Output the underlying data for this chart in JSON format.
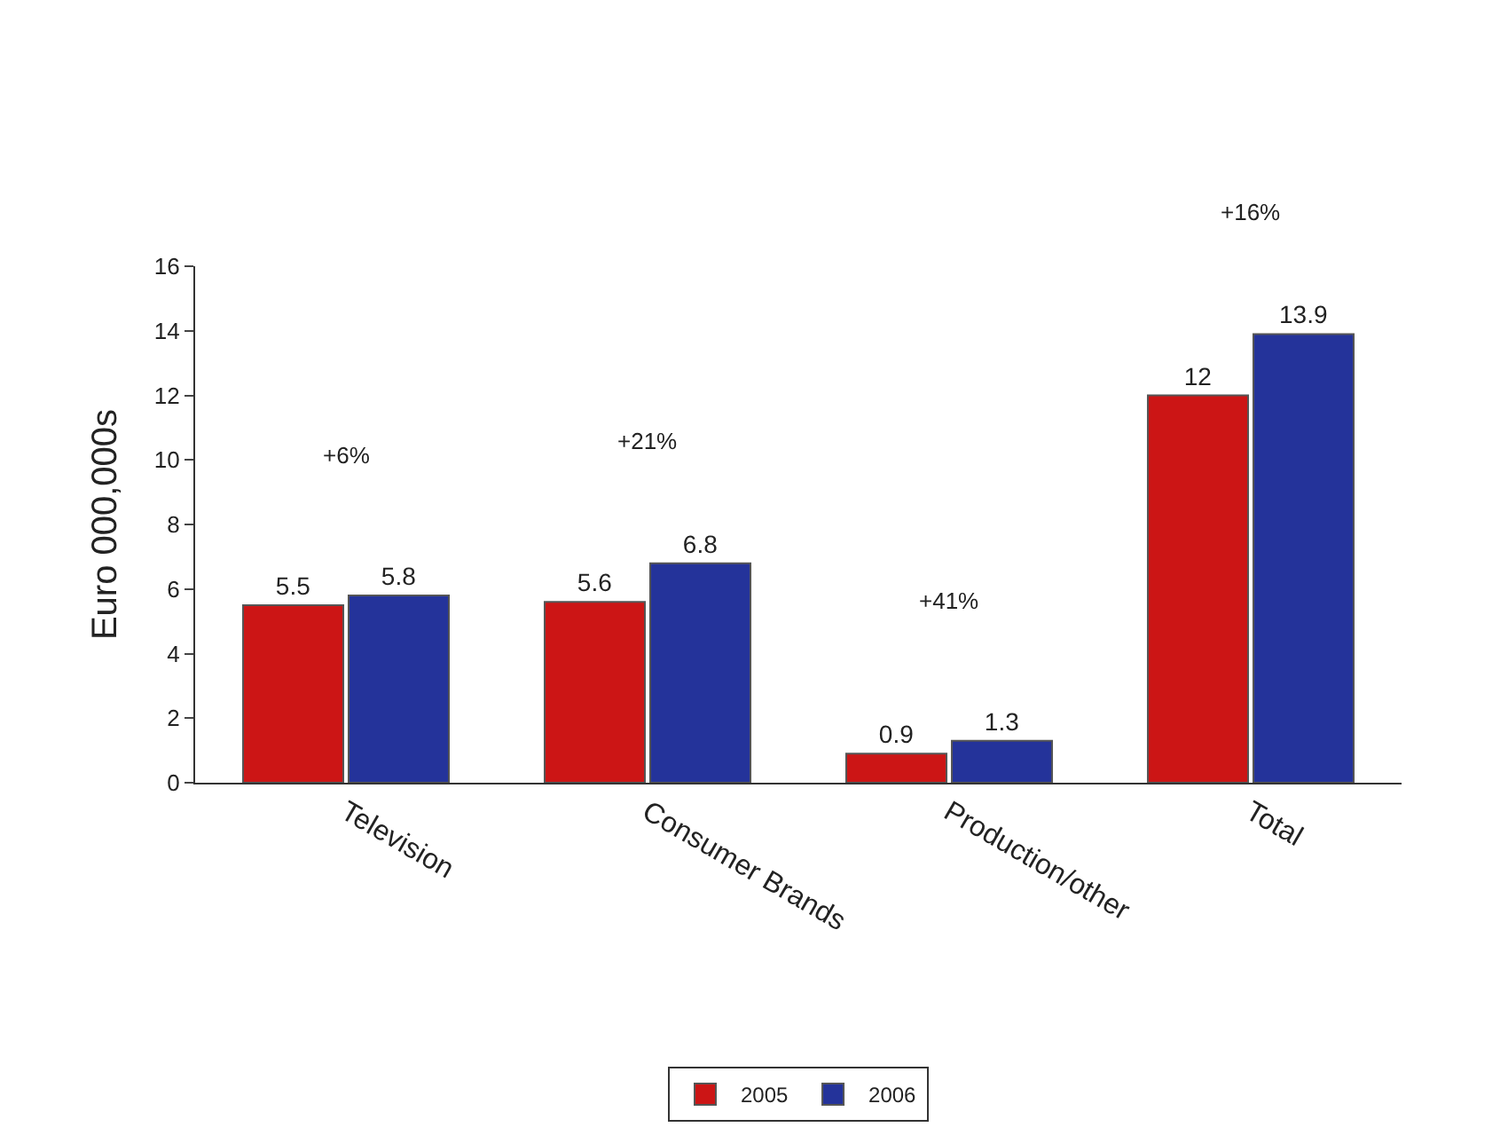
{
  "chart_data": {
    "type": "bar",
    "ylabel": "Euro 000,000s",
    "categories": [
      "Television",
      "Consumer Brands",
      "Production/other",
      "Total"
    ],
    "series": [
      {
        "name": "2005",
        "color": "#cc1515",
        "values": [
          5.5,
          5.6,
          0.9,
          12
        ]
      },
      {
        "name": "2006",
        "color": "#24339a",
        "values": [
          5.8,
          6.8,
          1.3,
          13.9
        ]
      }
    ],
    "annotations": [
      "+6%",
      "+21%",
      "+41%",
      "+16%"
    ],
    "ylim": [
      0,
      16
    ],
    "yticks": [
      0,
      2,
      4,
      6,
      8,
      10,
      12,
      14,
      16
    ],
    "data_labels": true,
    "legend": "bottom"
  }
}
